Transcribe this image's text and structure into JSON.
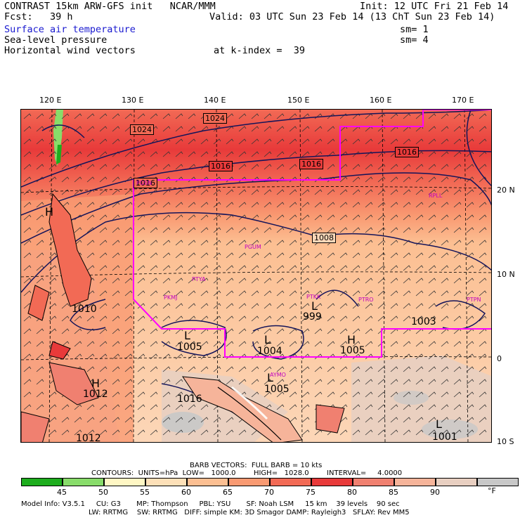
{
  "header": {
    "line1_left": "CONTRAST 15km ARW-GFS init   NCAR/MMM",
    "line1_right": "Init: 12 UTC Fri 21 Feb 14",
    "line2_left": "Fcst:   39 h",
    "line2_right": "Valid: 03 UTC Sun 23 Feb 14 (13 ChT Sun 23 Feb 14)",
    "field1": "Surface air temperature",
    "field1_sm": "sm= 1",
    "field2": "Sea-level pressure",
    "field2_sm": "sm= 4",
    "field3": "Horizontal wind vectors",
    "level": "at k-index =  39"
  },
  "map": {
    "lon_labels": [
      "120 E",
      "130 E",
      "140 E",
      "150 E",
      "160 E",
      "170 E"
    ],
    "lat_labels": [
      "20 N",
      "10 N",
      "0",
      "10 S"
    ],
    "isobar_labels": [
      "1024",
      "1024",
      "1016",
      "1016",
      "1016",
      "1016",
      "1008",
      "1010",
      "1012",
      "1012",
      "1016",
      "1005",
      "1004",
      "999",
      "1005",
      "1005",
      "1003",
      "1001"
    ],
    "pressure_centers": [
      "H",
      "L",
      "L",
      "L",
      "L",
      "H",
      "H",
      "L"
    ],
    "stations": [
      "RPLL",
      "PGUM",
      "PTYA",
      "PTKK",
      "PTRO",
      "PTPN",
      "PKMJ",
      "PGSN",
      "AYMO"
    ],
    "colors": {
      "land_outline": "#000",
      "isobar": "#14145a",
      "domain": "#ff00ff",
      "station": "#c000c0"
    }
  },
  "barb_info": {
    "line1": "BARB VECTORS:  FULL BARB = 10 kts",
    "line2": "CONTOURS:  UNITS=hPa  LOW=   1000.0        HIGH=   1028.0        INTERVAL=     4.0000"
  },
  "colorbar": {
    "colors": [
      "#1ead1e",
      "#88dc6a",
      "#fff7c4",
      "#fde0b8",
      "#fcbf92",
      "#f99a72",
      "#f26a55",
      "#e83a3a",
      "#f08070",
      "#f6b49a",
      "#e8cfc1",
      "#c8c8c8"
    ],
    "labels": [
      "45",
      "50",
      "55",
      "60",
      "65",
      "70",
      "75",
      "80",
      "85",
      "90"
    ],
    "unit": "°F"
  },
  "model_info": {
    "line1": "Model Info: V3.5.1     CU: G3       MP: Thompson     PBL: YSU       SF: Noah LSM     15 km    39 levels    90 sec",
    "line2": "LW: RRTMG    SW: RRTMG   DIFF: simple KM: 3D Smagor DAMP: Rayleigh3   SFLAY: Rev MM5"
  }
}
